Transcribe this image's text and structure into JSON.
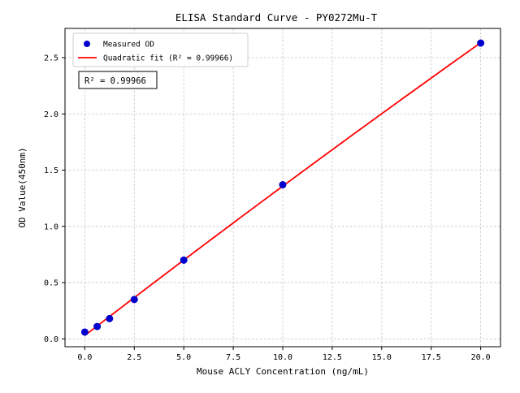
{
  "chart_data": {
    "type": "scatter",
    "title": "ELISA Standard Curve - PY0272Mu-T",
    "xlabel": "Mouse ACLY Concentration (ng/mL)",
    "ylabel": "OD Value(450nm)",
    "series": [
      {
        "name": "Measured OD",
        "kind": "scatter",
        "color": "#0000cd",
        "x": [
          0,
          0.625,
          1.25,
          2.5,
          5,
          10,
          20
        ],
        "y": [
          0.06,
          0.11,
          0.18,
          0.35,
          0.7,
          1.37,
          2.63
        ]
      },
      {
        "name": "Quadratic fit (R² = 0.99966)",
        "kind": "quadratic-fit",
        "color": "#ff0000"
      }
    ],
    "r_squared": 0.99966,
    "annotation": "R² = 0.99966",
    "xlim": [
      -1,
      21
    ],
    "ylim": [
      -0.07,
      2.76
    ],
    "xtick_values": [
      0,
      2.5,
      5,
      7.5,
      10,
      12.5,
      15,
      17.5,
      20
    ],
    "xticks": [
      "0.0",
      "2.5",
      "5.0",
      "7.5",
      "10.0",
      "12.5",
      "15.0",
      "17.5",
      "20.0"
    ],
    "ytick_values": [
      0,
      0.5,
      1,
      1.5,
      2,
      2.5
    ],
    "yticks": [
      "0.0",
      "0.5",
      "1.0",
      "1.5",
      "2.0",
      "2.5"
    ],
    "grid": true,
    "legend_position": "upper left",
    "colors": {
      "points": "#0000cd",
      "fit_line": "#ff0000",
      "grid": "#c3c3c3",
      "frame": "#000000",
      "background": "#ffffff"
    }
  }
}
